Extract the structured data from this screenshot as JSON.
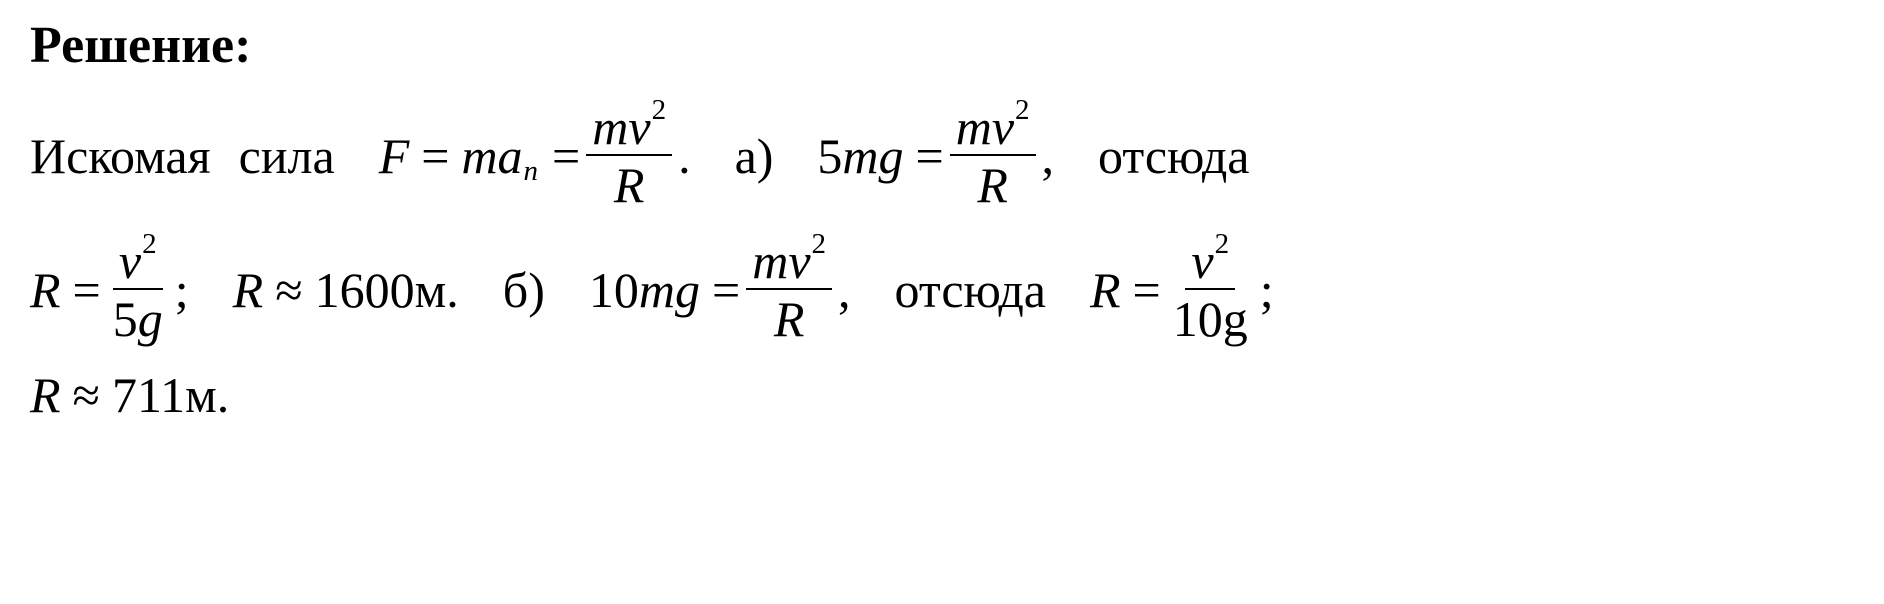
{
  "heading": "Решение:",
  "line1": {
    "t1": "Искомая",
    "t2": "сила",
    "F": "F",
    "eq1": "=",
    "m1": "m",
    "a": "a",
    "asub": "n",
    "eq2": "=",
    "frac1_num_m": "m",
    "frac1_num_v": "v",
    "frac1_num_v_sup": "2",
    "frac1_den": "R",
    "dot1": ".",
    "a_label": "а)",
    "five": "5",
    "m2": "m",
    "g1": "g",
    "eq3": "=",
    "frac2_num_m": "m",
    "frac2_num_v": "v",
    "frac2_num_v_sup": "2",
    "frac2_den": "R",
    "comma1": ",",
    "t3": "отсюда"
  },
  "line2": {
    "R1": "R",
    "eq1": "=",
    "frac1_num_v": "v",
    "frac1_num_v_sup": "2",
    "frac1_den_5": "5",
    "frac1_den_g": "g",
    "semi1": ";",
    "R2": "R",
    "approx1": "≈",
    "val1": "1600",
    "unit1": "м.",
    "b_label": "б)",
    "ten": "10",
    "m1": "m",
    "g1": "g",
    "eq2": "=",
    "frac2_num_m": "m",
    "frac2_num_v": "v",
    "frac2_num_v_sup": "2",
    "frac2_den": "R",
    "comma1": ",",
    "t1": "отсюда",
    "R3": "R",
    "eq3": "=",
    "frac3_num_v": "v",
    "frac3_num_v_sup": "2",
    "frac3_den_10": "10",
    "frac3_den_g": "g",
    "semi2": ";"
  },
  "line3": {
    "R": "R",
    "approx": "≈",
    "val": "711",
    "unit": "м."
  }
}
